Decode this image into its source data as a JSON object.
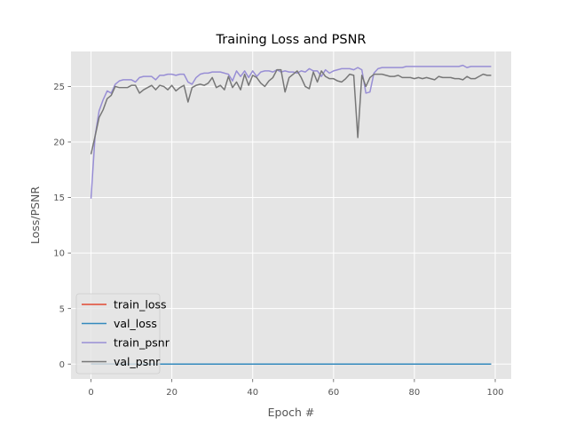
{
  "chart_data": {
    "type": "line",
    "title": "Training Loss and PSNR",
    "xlabel": "Epoch #",
    "ylabel": "Loss/PSNR",
    "xlim": [
      -4.95,
      103.95
    ],
    "ylim": [
      -1.34,
      28.15
    ],
    "x_ticks": [
      0,
      20,
      40,
      60,
      80,
      100
    ],
    "y_ticks": [
      0,
      5,
      10,
      15,
      20,
      25
    ],
    "grid": true,
    "legend_position": "lower-left",
    "style": "ggplot",
    "series": [
      {
        "name": "train_loss",
        "color": "#E24A33",
        "x": [
          0,
          1,
          2,
          5,
          10,
          20,
          30,
          40,
          50,
          60,
          70,
          80,
          90,
          99
        ],
        "values": [
          0.03,
          0.01,
          0.005,
          0.004,
          0.003,
          0.003,
          0.003,
          0.003,
          0.002,
          0.002,
          0.002,
          0.002,
          0.002,
          0.002
        ]
      },
      {
        "name": "val_loss",
        "color": "#348ABD",
        "x": [
          0,
          1,
          2,
          5,
          10,
          20,
          30,
          40,
          50,
          60,
          70,
          80,
          90,
          99
        ],
        "values": [
          0.01,
          0.006,
          0.004,
          0.004,
          0.003,
          0.003,
          0.003,
          0.003,
          0.003,
          0.003,
          0.003,
          0.003,
          0.003,
          0.003
        ]
      },
      {
        "name": "train_psnr",
        "color": "#988ED5",
        "x": [
          0,
          1,
          2,
          3,
          4,
          5,
          6,
          7,
          8,
          9,
          10,
          11,
          12,
          13,
          14,
          15,
          16,
          17,
          18,
          19,
          20,
          21,
          22,
          23,
          24,
          25,
          26,
          27,
          28,
          29,
          30,
          31,
          32,
          33,
          34,
          35,
          36,
          37,
          38,
          39,
          40,
          41,
          42,
          43,
          44,
          45,
          46,
          47,
          48,
          49,
          50,
          51,
          52,
          53,
          54,
          55,
          56,
          57,
          58,
          59,
          60,
          61,
          62,
          63,
          64,
          65,
          66,
          67,
          68,
          69,
          70,
          71,
          72,
          73,
          74,
          75,
          76,
          77,
          78,
          79,
          80,
          81,
          82,
          83,
          84,
          85,
          86,
          87,
          88,
          89,
          90,
          91,
          92,
          93,
          94,
          95,
          96,
          97,
          98,
          99
        ],
        "values": [
          14.9,
          20.5,
          22.8,
          23.8,
          24.6,
          24.4,
          25.2,
          25.5,
          25.6,
          25.6,
          25.6,
          25.4,
          25.8,
          25.9,
          25.9,
          25.9,
          25.6,
          26.0,
          26.0,
          26.1,
          26.1,
          26.0,
          26.1,
          26.1,
          25.4,
          25.2,
          25.8,
          26.1,
          26.2,
          26.2,
          26.3,
          26.3,
          26.3,
          26.2,
          26.1,
          25.5,
          26.4,
          25.9,
          26.4,
          25.8,
          26.4,
          25.9,
          26.3,
          26.4,
          26.4,
          26.3,
          26.5,
          26.3,
          26.4,
          26.3,
          26.3,
          26.2,
          26.4,
          26.3,
          26.6,
          26.4,
          26.4,
          25.9,
          26.5,
          26.2,
          26.4,
          26.5,
          26.6,
          26.6,
          26.6,
          26.5,
          26.7,
          26.5,
          24.4,
          24.5,
          26.2,
          26.6,
          26.7,
          26.7,
          26.7,
          26.7,
          26.7,
          26.7,
          26.8,
          26.8,
          26.8,
          26.8,
          26.8,
          26.8,
          26.8,
          26.8,
          26.8,
          26.8,
          26.8,
          26.8,
          26.8,
          26.8,
          26.9,
          26.7,
          26.8,
          26.8,
          26.8,
          26.8,
          26.8,
          26.8
        ]
      },
      {
        "name": "val_psnr",
        "color": "#777777",
        "x": [
          0,
          1,
          2,
          3,
          4,
          5,
          6,
          7,
          8,
          9,
          10,
          11,
          12,
          13,
          14,
          15,
          16,
          17,
          18,
          19,
          20,
          21,
          22,
          23,
          24,
          25,
          26,
          27,
          28,
          29,
          30,
          31,
          32,
          33,
          34,
          35,
          36,
          37,
          38,
          39,
          40,
          41,
          42,
          43,
          44,
          45,
          46,
          47,
          48,
          49,
          50,
          51,
          52,
          53,
          54,
          55,
          56,
          57,
          58,
          59,
          60,
          61,
          62,
          63,
          64,
          65,
          66,
          67,
          68,
          69,
          70,
          71,
          72,
          73,
          74,
          75,
          76,
          77,
          78,
          79,
          80,
          81,
          82,
          83,
          84,
          85,
          86,
          87,
          88,
          89,
          90,
          91,
          92,
          93,
          94,
          95,
          96,
          97,
          98,
          99
        ],
        "values": [
          18.9,
          20.5,
          22.2,
          22.9,
          23.9,
          24.2,
          25.0,
          24.9,
          24.9,
          24.9,
          25.1,
          25.1,
          24.4,
          24.7,
          24.9,
          25.1,
          24.7,
          25.1,
          25.0,
          24.7,
          25.1,
          24.6,
          24.9,
          25.1,
          23.6,
          24.9,
          25.1,
          25.2,
          25.1,
          25.3,
          25.8,
          24.9,
          25.1,
          24.7,
          25.9,
          24.9,
          25.4,
          24.7,
          26.1,
          25.1,
          26.0,
          25.8,
          25.3,
          25.0,
          25.5,
          25.8,
          26.5,
          26.5,
          24.5,
          25.8,
          26.1,
          26.4,
          25.8,
          25.0,
          24.8,
          26.3,
          25.4,
          26.4,
          25.9,
          25.7,
          25.7,
          25.5,
          25.4,
          25.7,
          26.1,
          26.0,
          20.4,
          26.0,
          25.0,
          25.8,
          26.1,
          26.1,
          26.1,
          26.0,
          25.9,
          25.9,
          26.0,
          25.8,
          25.8,
          25.8,
          25.7,
          25.8,
          25.7,
          25.8,
          25.7,
          25.6,
          25.9,
          25.8,
          25.8,
          25.8,
          25.7,
          25.7,
          25.6,
          25.9,
          25.7,
          25.7,
          25.9,
          26.1,
          26.0,
          26.0
        ]
      }
    ]
  }
}
